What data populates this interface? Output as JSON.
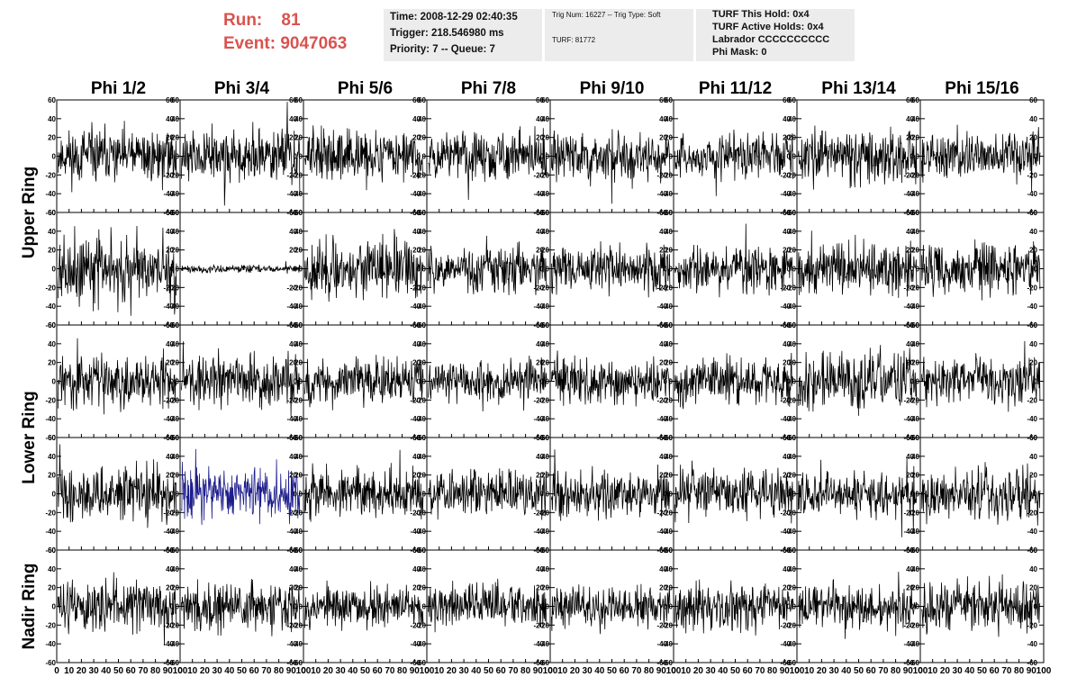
{
  "header": {
    "run_label": "Run:",
    "run_value": "81",
    "event_label": "Event:",
    "event_value": "9047063",
    "time_line": "Time: 2008-12-29 02:40:35",
    "trigger_line": "Trigger: 218.546980 ms",
    "priority_line": "Priority: 7 -- Queue: 7",
    "trig_line": "Trig Num: 16227 -- Trig Type: Soft",
    "turf_line": "TURF: 81772",
    "turf_hold_line": "TURF This Hold: 0x4",
    "turf_active_line": "TURF Active Holds: 0x4",
    "labrador_line": "Labrador CCCCCCCCCC",
    "phi_mask_line": "Phi Mask: 0"
  },
  "chart_data": {
    "type": "line",
    "columns": [
      "Phi 1/2",
      "Phi 3/4",
      "Phi 5/6",
      "Phi 7/8",
      "Phi 9/10",
      "Phi 11/12",
      "Phi 13/14",
      "Phi 15/16"
    ],
    "ring_labels": [
      {
        "label": "Upper Ring",
        "rows": [
          0,
          1
        ]
      },
      {
        "label": "Lower Ring",
        "rows": [
          2,
          3
        ]
      },
      {
        "label": "Nadir Ring",
        "rows": [
          4
        ]
      }
    ],
    "rows": 5,
    "xlim": [
      0,
      100
    ],
    "ylim": [
      -60,
      60
    ],
    "x_ticks": [
      "0",
      "10",
      "20",
      "30",
      "40",
      "50",
      "60",
      "70",
      "80",
      "90",
      "100"
    ],
    "y_ticks": [
      "-60",
      "-40",
      "-20",
      "0",
      "20",
      "40",
      "60"
    ],
    "waveform_points": 256,
    "default_trace_color": "#000000",
    "highlight_trace_color": "#1c1c8c",
    "panels": [
      {
        "row": 0,
        "col": 0,
        "amplitude": 14,
        "seed": 11
      },
      {
        "row": 0,
        "col": 1,
        "amplitude": 14,
        "seed": 12
      },
      {
        "row": 0,
        "col": 2,
        "amplitude": 13,
        "seed": 13
      },
      {
        "row": 0,
        "col": 3,
        "amplitude": 12,
        "seed": 14
      },
      {
        "row": 0,
        "col": 4,
        "amplitude": 12,
        "seed": 15
      },
      {
        "row": 0,
        "col": 5,
        "amplitude": 11,
        "seed": 16
      },
      {
        "row": 0,
        "col": 6,
        "amplitude": 13,
        "seed": 17
      },
      {
        "row": 0,
        "col": 7,
        "amplitude": 12,
        "seed": 18
      },
      {
        "row": 1,
        "col": 0,
        "amplitude": 18,
        "seed": 21
      },
      {
        "row": 1,
        "col": 1,
        "amplitude": 2,
        "seed": 22
      },
      {
        "row": 1,
        "col": 2,
        "amplitude": 15,
        "seed": 23
      },
      {
        "row": 1,
        "col": 3,
        "amplitude": 12,
        "seed": 24
      },
      {
        "row": 1,
        "col": 4,
        "amplitude": 12,
        "seed": 25
      },
      {
        "row": 1,
        "col": 5,
        "amplitude": 12,
        "seed": 26
      },
      {
        "row": 1,
        "col": 6,
        "amplitude": 13,
        "seed": 27
      },
      {
        "row": 1,
        "col": 7,
        "amplitude": 13,
        "seed": 28
      },
      {
        "row": 2,
        "col": 0,
        "amplitude": 13,
        "seed": 31
      },
      {
        "row": 2,
        "col": 1,
        "amplitude": 14,
        "seed": 32
      },
      {
        "row": 2,
        "col": 2,
        "amplitude": 12,
        "seed": 33
      },
      {
        "row": 2,
        "col": 3,
        "amplitude": 11,
        "seed": 34
      },
      {
        "row": 2,
        "col": 4,
        "amplitude": 12,
        "seed": 35
      },
      {
        "row": 2,
        "col": 5,
        "amplitude": 12,
        "seed": 36
      },
      {
        "row": 2,
        "col": 6,
        "amplitude": 15,
        "seed": 37
      },
      {
        "row": 2,
        "col": 7,
        "amplitude": 12,
        "seed": 38
      },
      {
        "row": 3,
        "col": 0,
        "amplitude": 14,
        "seed": 41
      },
      {
        "row": 3,
        "col": 1,
        "amplitude": 14,
        "seed": 42,
        "highlight": true
      },
      {
        "row": 3,
        "col": 2,
        "amplitude": 12,
        "seed": 43
      },
      {
        "row": 3,
        "col": 3,
        "amplitude": 12,
        "seed": 44
      },
      {
        "row": 3,
        "col": 4,
        "amplitude": 12,
        "seed": 45
      },
      {
        "row": 3,
        "col": 5,
        "amplitude": 12,
        "seed": 46
      },
      {
        "row": 3,
        "col": 6,
        "amplitude": 12,
        "seed": 47
      },
      {
        "row": 3,
        "col": 7,
        "amplitude": 14,
        "seed": 48
      },
      {
        "row": 4,
        "col": 0,
        "amplitude": 13,
        "seed": 51
      },
      {
        "row": 4,
        "col": 1,
        "amplitude": 12,
        "seed": 52
      },
      {
        "row": 4,
        "col": 2,
        "amplitude": 11,
        "seed": 53
      },
      {
        "row": 4,
        "col": 3,
        "amplitude": 11,
        "seed": 54
      },
      {
        "row": 4,
        "col": 4,
        "amplitude": 11,
        "seed": 55
      },
      {
        "row": 4,
        "col": 5,
        "amplitude": 12,
        "seed": 56
      },
      {
        "row": 4,
        "col": 6,
        "amplitude": 11,
        "seed": 57
      },
      {
        "row": 4,
        "col": 7,
        "amplitude": 13,
        "seed": 58
      }
    ]
  }
}
